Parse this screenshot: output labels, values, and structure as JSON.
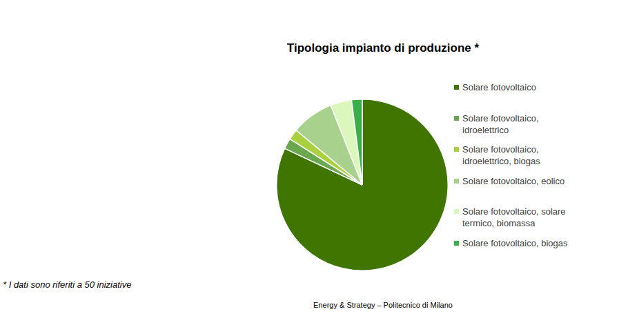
{
  "chart_data": {
    "type": "pie",
    "title": "Tipologia impianto di produzione *",
    "categories": [
      "Solare fotovoltaico",
      "Solare fotovoltaico, idroelettrico",
      "Solare fotovoltaico, idroelettrico, biogas",
      "Solare fotovoltaico, eolico",
      "Solare fotovoltaico, solare termico, biomassa",
      "Solare fotovoltaico, biogas"
    ],
    "values": [
      41,
      1,
      1,
      4,
      2,
      1
    ],
    "colors": [
      "#3f7500",
      "#6aa84f",
      "#a9d13f",
      "#a9d18e",
      "#dbf7bd",
      "#3aae48"
    ],
    "legend": "right",
    "annotations": [
      "* I dati sono riferiti a 50 iniziative",
      "Energy & Strategy – Politecnico di Milano"
    ]
  }
}
